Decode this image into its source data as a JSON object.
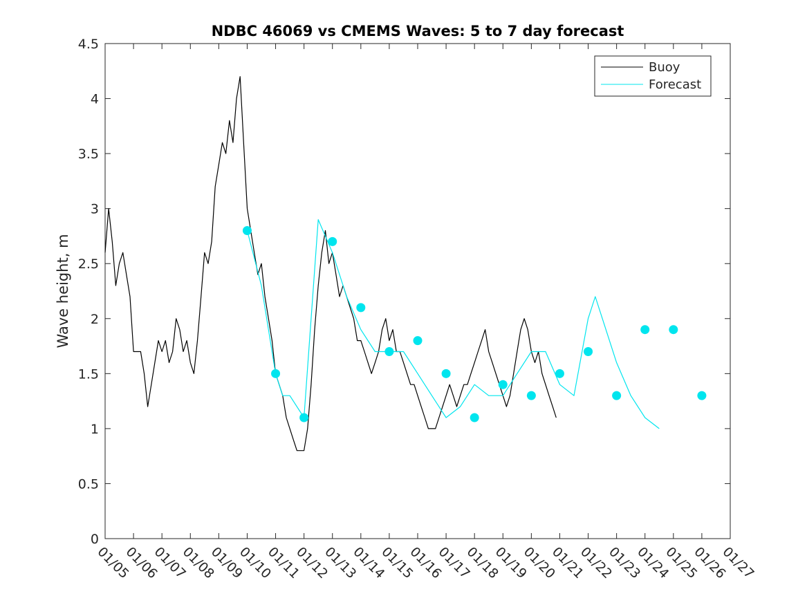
{
  "chart_data": {
    "type": "line",
    "title": "NDBC 46069 vs CMEMS Waves: 5 to 7 day forecast",
    "xlabel": "",
    "ylabel": "Wave height, m",
    "ylim": [
      0,
      4.5
    ],
    "yticks": [
      "0",
      "0.5",
      "1",
      "1.5",
      "2",
      "2.5",
      "3",
      "3.5",
      "4",
      "4.5"
    ],
    "x_axis_unit": "date (MM/DD)",
    "xlim": [
      "01/05",
      "01/27"
    ],
    "xticks": [
      "01/05",
      "01/06",
      "01/07",
      "01/08",
      "01/09",
      "01/10",
      "01/11",
      "01/12",
      "01/13",
      "01/14",
      "01/15",
      "01/16",
      "01/17",
      "01/18",
      "01/19",
      "01/20",
      "01/21",
      "01/22",
      "01/23",
      "01/24",
      "01/25",
      "01/26",
      "01/27"
    ],
    "legend": {
      "placement": "top-right",
      "entries": [
        "Buoy",
        "Forecast"
      ]
    },
    "grid": false,
    "colors": {
      "buoy": "#000000",
      "forecast": "#00e5ee"
    },
    "series": [
      {
        "name": "Buoy",
        "style": "line",
        "color": "#000000",
        "points": [
          [
            "01/05 00:00",
            2.6
          ],
          [
            "01/05 03:00",
            3.0
          ],
          [
            "01/05 06:00",
            2.7
          ],
          [
            "01/05 09:00",
            2.3
          ],
          [
            "01/05 12:00",
            2.5
          ],
          [
            "01/05 15:00",
            2.6
          ],
          [
            "01/05 18:00",
            2.4
          ],
          [
            "01/05 21:00",
            2.2
          ],
          [
            "01/06 00:00",
            1.7
          ],
          [
            "01/06 03:00",
            1.7
          ],
          [
            "01/06 06:00",
            1.7
          ],
          [
            "01/06 09:00",
            1.5
          ],
          [
            "01/06 12:00",
            1.2
          ],
          [
            "01/06 15:00",
            1.4
          ],
          [
            "01/06 18:00",
            1.6
          ],
          [
            "01/06 21:00",
            1.8
          ],
          [
            "01/07 00:00",
            1.7
          ],
          [
            "01/07 03:00",
            1.8
          ],
          [
            "01/07 06:00",
            1.6
          ],
          [
            "01/07 09:00",
            1.7
          ],
          [
            "01/07 12:00",
            2.0
          ],
          [
            "01/07 15:00",
            1.9
          ],
          [
            "01/07 18:00",
            1.7
          ],
          [
            "01/07 21:00",
            1.8
          ],
          [
            "01/08 00:00",
            1.6
          ],
          [
            "01/08 03:00",
            1.5
          ],
          [
            "01/08 06:00",
            1.8
          ],
          [
            "01/08 09:00",
            2.2
          ],
          [
            "01/08 12:00",
            2.6
          ],
          [
            "01/08 15:00",
            2.5
          ],
          [
            "01/08 18:00",
            2.7
          ],
          [
            "01/08 21:00",
            3.2
          ],
          [
            "01/09 00:00",
            3.4
          ],
          [
            "01/09 03:00",
            3.6
          ],
          [
            "01/09 06:00",
            3.5
          ],
          [
            "01/09 09:00",
            3.8
          ],
          [
            "01/09 12:00",
            3.6
          ],
          [
            "01/09 15:00",
            4.0
          ],
          [
            "01/09 18:00",
            4.2
          ],
          [
            "01/09 21:00",
            3.6
          ],
          [
            "01/10 00:00",
            3.0
          ],
          [
            "01/10 03:00",
            2.8
          ],
          [
            "01/10 06:00",
            2.6
          ],
          [
            "01/10 09:00",
            2.4
          ],
          [
            "01/10 12:00",
            2.5
          ],
          [
            "01/10 15:00",
            2.2
          ],
          [
            "01/10 18:00",
            2.0
          ],
          [
            "01/10 21:00",
            1.8
          ],
          [
            "01/11 00:00",
            1.5
          ],
          [
            "01/11 03:00",
            1.4
          ],
          [
            "01/11 06:00",
            1.3
          ],
          [
            "01/11 09:00",
            1.1
          ],
          [
            "01/11 12:00",
            1.0
          ],
          [
            "01/11 15:00",
            0.9
          ],
          [
            "01/11 18:00",
            0.8
          ],
          [
            "01/11 21:00",
            0.8
          ],
          [
            "01/12 00:00",
            0.8
          ],
          [
            "01/12 03:00",
            1.0
          ],
          [
            "01/12 06:00",
            1.4
          ],
          [
            "01/12 09:00",
            1.9
          ],
          [
            "01/12 12:00",
            2.3
          ],
          [
            "01/12 15:00",
            2.6
          ],
          [
            "01/12 18:00",
            2.8
          ],
          [
            "01/12 21:00",
            2.5
          ],
          [
            "01/13 00:00",
            2.6
          ],
          [
            "01/13 03:00",
            2.4
          ],
          [
            "01/13 06:00",
            2.2
          ],
          [
            "01/13 09:00",
            2.3
          ],
          [
            "01/13 12:00",
            2.2
          ],
          [
            "01/13 15:00",
            2.1
          ],
          [
            "01/13 18:00",
            2.0
          ],
          [
            "01/13 21:00",
            1.8
          ],
          [
            "01/14 00:00",
            1.8
          ],
          [
            "01/14 03:00",
            1.7
          ],
          [
            "01/14 06:00",
            1.6
          ],
          [
            "01/14 09:00",
            1.5
          ],
          [
            "01/14 12:00",
            1.6
          ],
          [
            "01/14 15:00",
            1.7
          ],
          [
            "01/14 18:00",
            1.9
          ],
          [
            "01/14 21:00",
            2.0
          ],
          [
            "01/15 00:00",
            1.8
          ],
          [
            "01/15 03:00",
            1.9
          ],
          [
            "01/15 06:00",
            1.7
          ],
          [
            "01/15 09:00",
            1.7
          ],
          [
            "01/15 12:00",
            1.6
          ],
          [
            "01/15 15:00",
            1.5
          ],
          [
            "01/15 18:00",
            1.4
          ],
          [
            "01/15 21:00",
            1.4
          ],
          [
            "01/16 00:00",
            1.3
          ],
          [
            "01/16 03:00",
            1.2
          ],
          [
            "01/16 06:00",
            1.1
          ],
          [
            "01/16 09:00",
            1.0
          ],
          [
            "01/16 12:00",
            1.0
          ],
          [
            "01/16 15:00",
            1.0
          ],
          [
            "01/16 18:00",
            1.1
          ],
          [
            "01/16 21:00",
            1.2
          ],
          [
            "01/17 00:00",
            1.3
          ],
          [
            "01/17 03:00",
            1.4
          ],
          [
            "01/17 06:00",
            1.3
          ],
          [
            "01/17 09:00",
            1.2
          ],
          [
            "01/17 12:00",
            1.3
          ],
          [
            "01/17 15:00",
            1.4
          ],
          [
            "01/17 18:00",
            1.4
          ],
          [
            "01/17 21:00",
            1.5
          ],
          [
            "01/18 00:00",
            1.6
          ],
          [
            "01/18 03:00",
            1.7
          ],
          [
            "01/18 06:00",
            1.8
          ],
          [
            "01/18 09:00",
            1.9
          ],
          [
            "01/18 12:00",
            1.7
          ],
          [
            "01/18 15:00",
            1.6
          ],
          [
            "01/18 18:00",
            1.5
          ],
          [
            "01/18 21:00",
            1.4
          ],
          [
            "01/19 00:00",
            1.3
          ],
          [
            "01/19 03:00",
            1.2
          ],
          [
            "01/19 06:00",
            1.3
          ],
          [
            "01/19 09:00",
            1.5
          ],
          [
            "01/19 12:00",
            1.7
          ],
          [
            "01/19 15:00",
            1.9
          ],
          [
            "01/19 18:00",
            2.0
          ],
          [
            "01/19 21:00",
            1.9
          ],
          [
            "01/20 00:00",
            1.7
          ],
          [
            "01/20 03:00",
            1.6
          ],
          [
            "01/20 06:00",
            1.7
          ],
          [
            "01/20 09:00",
            1.5
          ],
          [
            "01/20 12:00",
            1.4
          ],
          [
            "01/20 15:00",
            1.3
          ],
          [
            "01/20 18:00",
            1.2
          ],
          [
            "01/20 21:00",
            1.1
          ]
        ]
      },
      {
        "name": "Forecast",
        "style": "line",
        "color": "#00e5ee",
        "points": [
          [
            "01/10 00:00",
            2.8
          ],
          [
            "01/10 12:00",
            2.3
          ],
          [
            "01/11 00:00",
            1.5
          ],
          [
            "01/11 06:00",
            1.3
          ],
          [
            "01/11 12:00",
            1.3
          ],
          [
            "01/12 00:00",
            1.1
          ],
          [
            "01/12 06:00",
            2.0
          ],
          [
            "01/12 12:00",
            2.9
          ],
          [
            "01/13 00:00",
            2.6
          ],
          [
            "01/13 12:00",
            2.2
          ],
          [
            "01/14 00:00",
            1.9
          ],
          [
            "01/14 12:00",
            1.7
          ],
          [
            "01/15 00:00",
            1.7
          ],
          [
            "01/15 12:00",
            1.7
          ],
          [
            "01/16 00:00",
            1.5
          ],
          [
            "01/16 12:00",
            1.3
          ],
          [
            "01/17 00:00",
            1.1
          ],
          [
            "01/17 12:00",
            1.2
          ],
          [
            "01/18 00:00",
            1.4
          ],
          [
            "01/18 12:00",
            1.3
          ],
          [
            "01/19 00:00",
            1.3
          ],
          [
            "01/19 12:00",
            1.5
          ],
          [
            "01/20 00:00",
            1.7
          ],
          [
            "01/20 12:00",
            1.7
          ],
          [
            "01/21 00:00",
            1.4
          ],
          [
            "01/21 12:00",
            1.3
          ],
          [
            "01/22 00:00",
            2.0
          ],
          [
            "01/22 06:00",
            2.2
          ],
          [
            "01/22 12:00",
            2.0
          ],
          [
            "01/23 00:00",
            1.6
          ],
          [
            "01/23 12:00",
            1.3
          ],
          [
            "01/24 00:00",
            1.1
          ],
          [
            "01/24 12:00",
            1.0
          ]
        ]
      },
      {
        "name": "",
        "style": "markers",
        "color": "#00e5ee",
        "points": [
          [
            "01/10 00:00",
            2.8
          ],
          [
            "01/11 00:00",
            1.5
          ],
          [
            "01/12 00:00",
            1.1
          ],
          [
            "01/13 00:00",
            2.7
          ],
          [
            "01/14 00:00",
            2.1
          ],
          [
            "01/15 00:00",
            1.7
          ],
          [
            "01/16 00:00",
            1.8
          ],
          [
            "01/17 00:00",
            1.5
          ],
          [
            "01/18 00:00",
            1.1
          ],
          [
            "01/19 00:00",
            1.4
          ],
          [
            "01/20 00:00",
            1.3
          ],
          [
            "01/21 00:00",
            1.5
          ],
          [
            "01/22 00:00",
            1.7
          ],
          [
            "01/23 00:00",
            1.3
          ],
          [
            "01/24 00:00",
            1.9
          ],
          [
            "01/25 00:00",
            1.9
          ],
          [
            "01/26 00:00",
            1.3
          ]
        ]
      }
    ]
  }
}
